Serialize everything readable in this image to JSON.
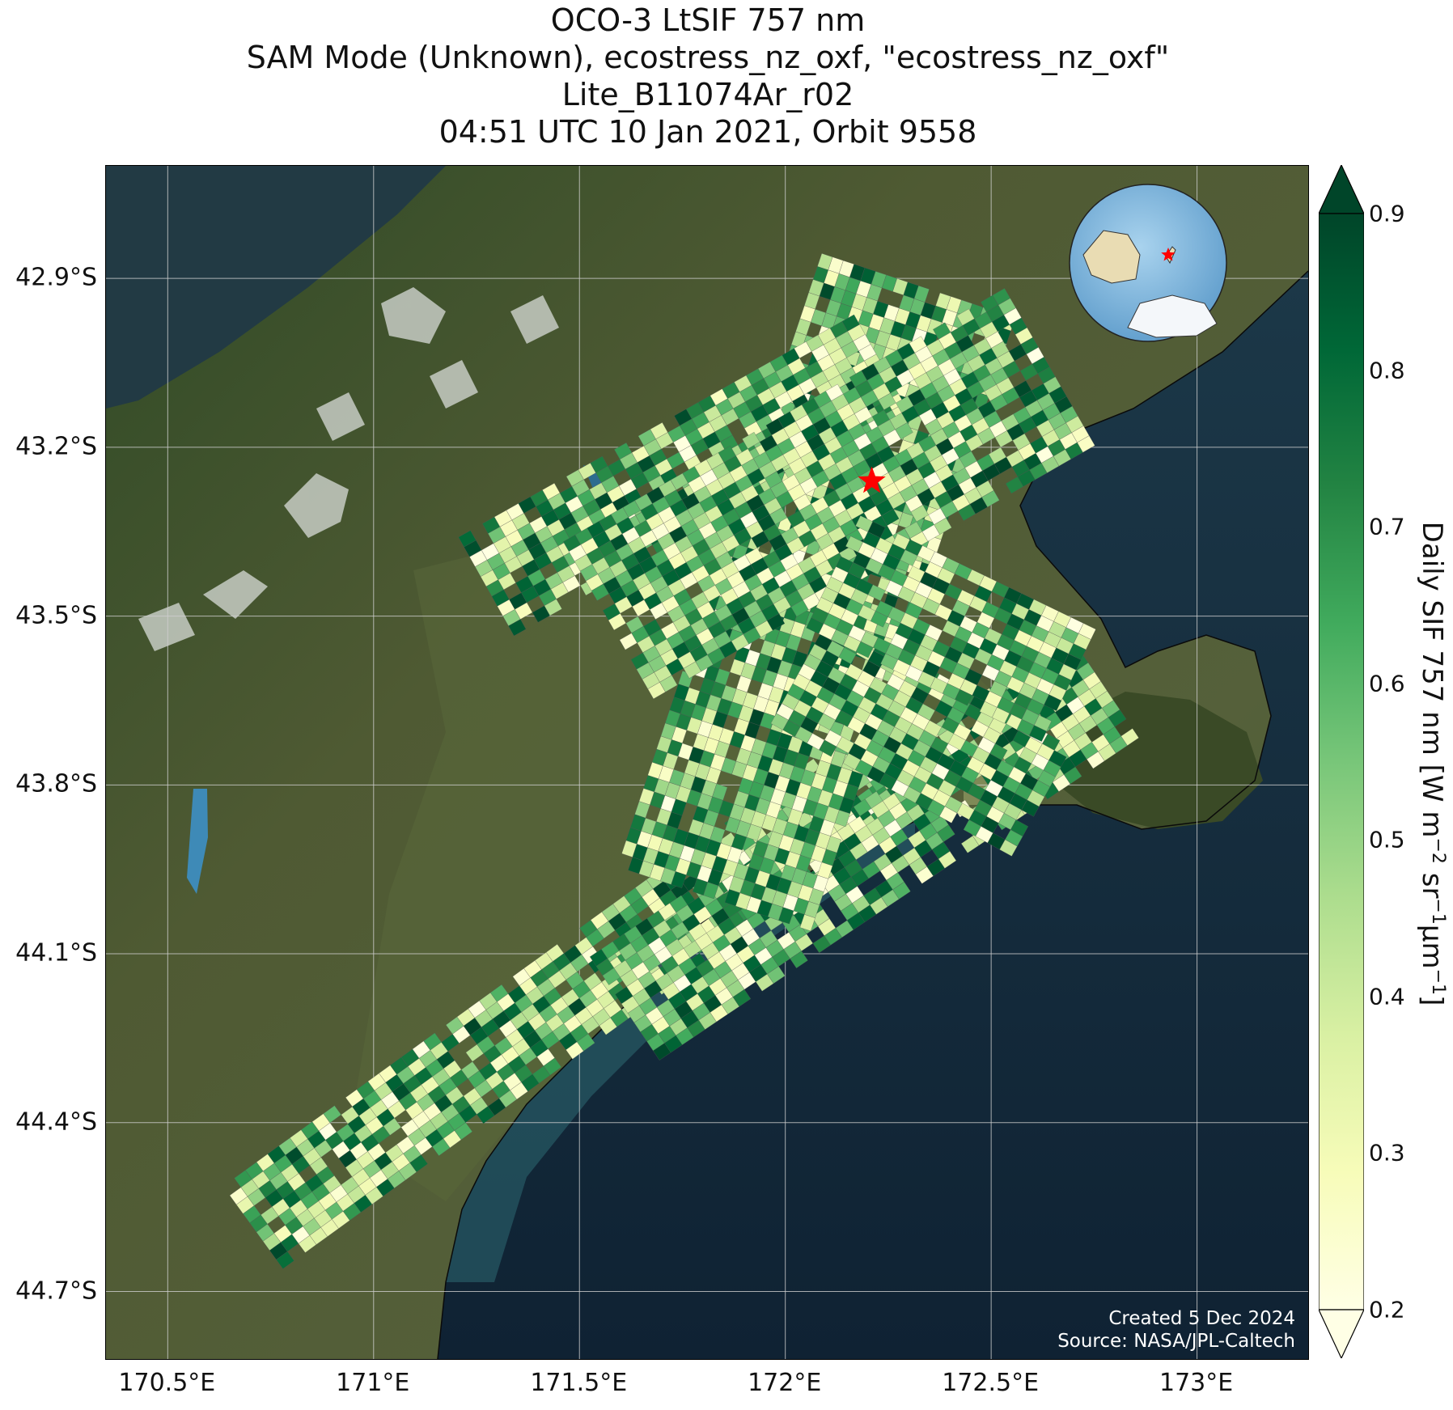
{
  "title": {
    "line1": "OCO-3 LtSIF 757 nm",
    "line2": "SAM Mode (Unknown), ecostress_nz_oxf, \"ecostress_nz_oxf\"",
    "line3": "Lite_B11074Ar_r02",
    "line4": "04:51 UTC 10 Jan 2021, Orbit 9558"
  },
  "map": {
    "lon_range": [
      170.35,
      173.27
    ],
    "lat_range": [
      -44.82,
      -42.7
    ],
    "lat_ticks": [
      "42.9°S",
      "43.2°S",
      "43.5°S",
      "43.8°S",
      "44.1°S",
      "44.4°S",
      "44.7°S"
    ],
    "lat_tick_values": [
      -42.9,
      -43.2,
      -43.5,
      -43.8,
      -44.1,
      -44.4,
      -44.7
    ],
    "lon_ticks": [
      "170.5°E",
      "171°E",
      "171.5°E",
      "172°E",
      "172.5°E",
      "173°E"
    ],
    "lon_tick_values": [
      170.5,
      171.0,
      171.5,
      172.0,
      172.5,
      173.0
    ],
    "target_marker": {
      "lon": 172.21,
      "lat": -43.26,
      "color": "#ff0000",
      "icon": "star-icon"
    },
    "inset_globe": {
      "marker_lon": 172.2,
      "marker_lat": -43.3,
      "icon": "globe-icon"
    },
    "credit_line1": "Created 5 Dec 2024",
    "credit_line2": "Source: NASA/JPL-Caltech"
  },
  "colorbar": {
    "label_main": "Daily SIF 757 nm [W m",
    "label_sup1": "−2",
    "label_mid1": " sr",
    "label_sup2": "−1",
    "label_mid2": "μm",
    "label_sup3": "−1",
    "label_end": "]",
    "min": 0.2,
    "max": 0.9,
    "ticks": [
      "0.2",
      "0.3",
      "0.4",
      "0.5",
      "0.6",
      "0.7",
      "0.8",
      "0.9"
    ],
    "tick_values": [
      0.2,
      0.3,
      0.4,
      0.5,
      0.6,
      0.7,
      0.8,
      0.9
    ],
    "colormap": [
      "#ffffe5",
      "#f7fcb9",
      "#d9f0a3",
      "#addd8e",
      "#78c679",
      "#41ab5d",
      "#238443",
      "#006837",
      "#004529"
    ]
  }
}
